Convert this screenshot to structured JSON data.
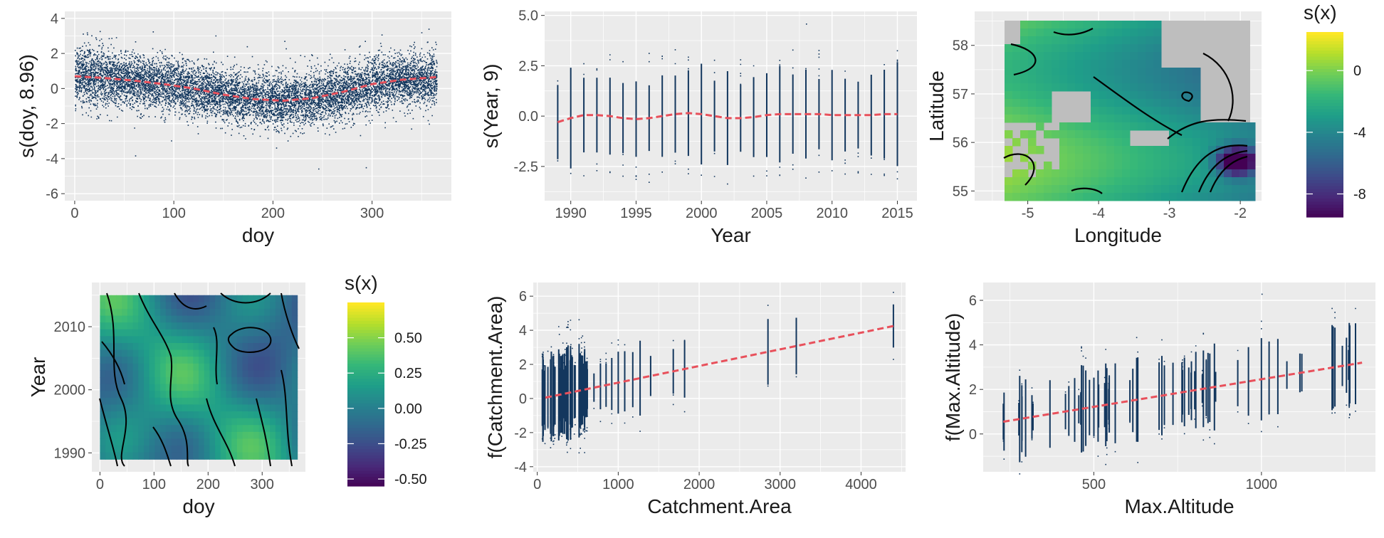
{
  "colors": {
    "panel_bg": "#ebebeb",
    "grid": "#ffffff",
    "points": "#13375e",
    "fit": "#e8505b",
    "na_fill": "#bebebe",
    "contour": "#000000"
  },
  "chart_data": [
    {
      "id": "doy",
      "type": "scatter",
      "xlabel": "doy",
      "ylabel": "s(doy, 8.96)",
      "xlim": [
        -10,
        380
      ],
      "ylim": [
        -6.4,
        4.4
      ],
      "xticks": [
        0,
        100,
        200,
        300
      ],
      "yticks": [
        -6,
        -4,
        -2,
        0,
        2,
        4
      ],
      "grid": true,
      "fit": {
        "x": [
          0,
          30,
          60,
          90,
          120,
          150,
          180,
          210,
          240,
          270,
          300,
          330,
          365
        ],
        "y": [
          0.7,
          0.6,
          0.45,
          0.25,
          0.0,
          -0.35,
          -0.6,
          -0.7,
          -0.55,
          -0.2,
          0.25,
          0.5,
          0.65
        ]
      }
    },
    {
      "id": "year",
      "type": "scatter",
      "xlabel": "Year",
      "ylabel": "s(Year, 9)",
      "xlim": [
        1988,
        2016.5
      ],
      "ylim": [
        -4.2,
        5.2
      ],
      "xticks": [
        1990,
        1995,
        2000,
        2005,
        2010,
        2015
      ],
      "yticks": [
        -2.5,
        0.0,
        2.5,
        5.0
      ],
      "ytick_labels": [
        "-2.5",
        "0.0",
        "2.5",
        "5.0"
      ],
      "grid": true,
      "fit": {
        "x": [
          1989,
          1990,
          1991,
          1992,
          1993,
          1994,
          1995,
          1996,
          1997,
          1998,
          1999,
          2000,
          2001,
          2002,
          2003,
          2004,
          2005,
          2006,
          2007,
          2008,
          2009,
          2010,
          2011,
          2012,
          2013,
          2014,
          2015
        ],
        "y": [
          -0.3,
          -0.1,
          0.05,
          0.05,
          0.0,
          -0.1,
          -0.15,
          -0.1,
          0.0,
          0.1,
          0.15,
          0.1,
          0.0,
          -0.1,
          -0.1,
          -0.05,
          0.05,
          0.1,
          0.1,
          0.1,
          0.1,
          0.05,
          0.05,
          0.05,
          0.05,
          0.1,
          0.1
        ]
      }
    },
    {
      "id": "spatial",
      "type": "heatmap",
      "xlabel": "Longitude",
      "ylabel": "Latitude",
      "xlim": [
        -5.75,
        -1.7
      ],
      "ylim": [
        54.8,
        58.7
      ],
      "xticks": [
        -5,
        -4,
        -3,
        -2
      ],
      "yticks": [
        55,
        56,
        57,
        58
      ],
      "legend_title": "s(x)",
      "legend_ticks": [
        0,
        -4,
        -8
      ],
      "legend_range": [
        -9.5,
        2.5
      ],
      "grid": true
    },
    {
      "id": "te",
      "type": "heatmap",
      "xlabel": "doy",
      "ylabel": "Year",
      "xlim": [
        -15,
        380
      ],
      "ylim": [
        1987,
        2017
      ],
      "xticks": [
        0,
        100,
        200,
        300
      ],
      "yticks": [
        1990,
        2000,
        2010
      ],
      "legend_title": "s(x)",
      "legend_ticks": [
        0.5,
        0.25,
        0.0,
        -0.25,
        -0.5
      ],
      "legend_tick_labels": [
        "0.50",
        "0.25",
        "0.00",
        "-0.25",
        "-0.50"
      ],
      "legend_range": [
        -0.55,
        0.75
      ],
      "grid": true
    },
    {
      "id": "catch",
      "type": "scatter",
      "xlabel": "Catchment.Area",
      "ylabel": "f(Catchment.Area)",
      "xlim": [
        -50,
        4550
      ],
      "ylim": [
        -4.3,
        6.8
      ],
      "xticks": [
        0,
        1000,
        2000,
        3000,
        4000
      ],
      "yticks": [
        -4,
        -2,
        0,
        2,
        4,
        6
      ],
      "grid": true,
      "fit": {
        "x": [
          100,
          4400
        ],
        "y": [
          0.05,
          4.25
        ]
      }
    },
    {
      "id": "alt",
      "type": "scatter",
      "xlabel": "Max.Altitude",
      "ylabel": "f(Max.Altitude)",
      "xlim": [
        170,
        1340
      ],
      "ylim": [
        -1.7,
        6.8
      ],
      "xticks": [
        500,
        1000
      ],
      "yticks": [
        0,
        2,
        4,
        6
      ],
      "grid": true,
      "fit": {
        "x": [
          230,
          1300
        ],
        "y": [
          0.55,
          3.2
        ]
      }
    }
  ]
}
